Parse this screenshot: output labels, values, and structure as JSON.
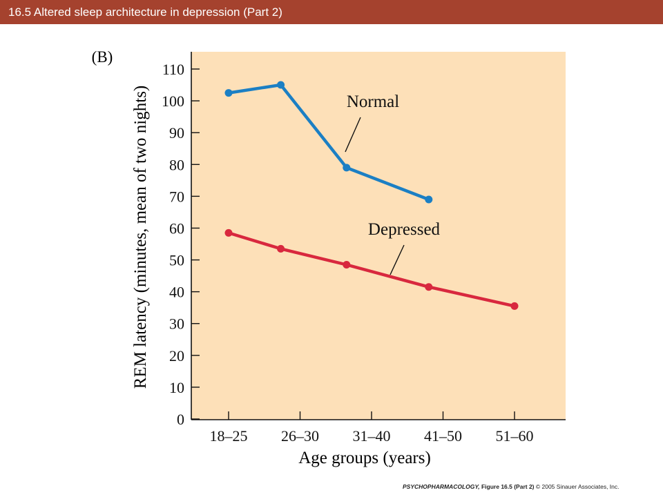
{
  "slide": {
    "title": "16.5  Altered sleep architecture in depression (Part 2)"
  },
  "panel_label": "(B)",
  "footer": {
    "book": "PSYCHOPHARMACOLOGY,",
    "figure": " Figure 16.5 (Part 2)",
    "copyright": "  © 2005 Sinauer Associates, Inc."
  },
  "chart_data": {
    "type": "line",
    "title": "",
    "xlabel": "Age groups (years)",
    "ylabel": "REM latency (minutes, mean of two nights)",
    "categories": [
      "18–25",
      "26–30",
      "31–40",
      "41–50",
      "51–60"
    ],
    "ylim": [
      0,
      110
    ],
    "yticks": [
      0,
      10,
      20,
      30,
      40,
      50,
      60,
      70,
      80,
      90,
      100,
      110
    ],
    "grid": false,
    "background_color": "#fde0b8",
    "series": [
      {
        "name": "Normal",
        "color": "#1b7fc4",
        "points": [
          {
            "x": 0,
            "y": 102.5
          },
          {
            "x": 0.73,
            "y": 105
          },
          {
            "x": 1.65,
            "y": 79
          },
          {
            "x": 2.8,
            "y": 69
          }
        ]
      },
      {
        "name": "Depressed",
        "color": "#d8283e",
        "points": [
          {
            "x": 0,
            "y": 58.5
          },
          {
            "x": 0.73,
            "y": 53.5
          },
          {
            "x": 1.65,
            "y": 48.5
          },
          {
            "x": 2.8,
            "y": 41.5
          },
          {
            "x": 4,
            "y": 35.5
          }
        ]
      }
    ]
  }
}
